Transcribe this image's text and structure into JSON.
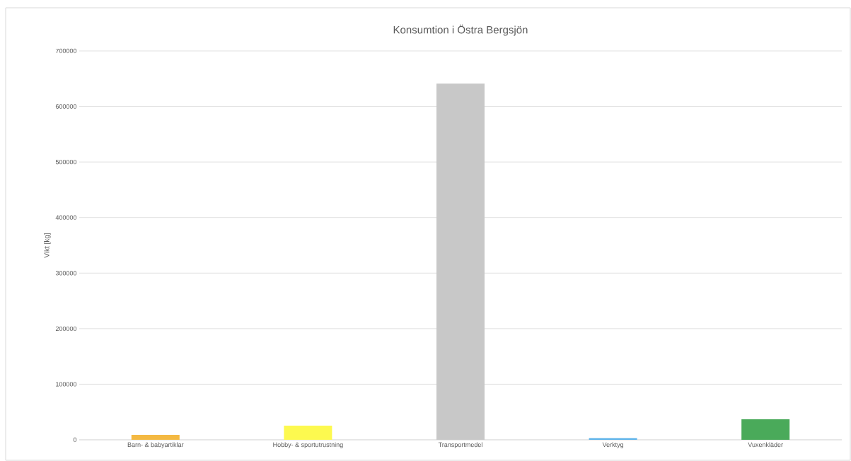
{
  "chart_data": {
    "type": "bar",
    "title": "Konsumtion i Östra Bergsjön",
    "ylabel": "Vikt [kg]",
    "categories": [
      "Barn- & babyartiklar",
      "Hobby- & sportutrustning",
      "Transportmedel",
      "Verktyg",
      "Vuxenkläder"
    ],
    "values": [
      9000,
      25500,
      641000,
      3000,
      37000
    ],
    "colors": [
      "#f4b942",
      "#fdf94f",
      "#c8c8c8",
      "#5cb3ea",
      "#4aaa5a"
    ],
    "ylim": [
      0,
      700000
    ],
    "yticks": [
      0,
      100000,
      200000,
      300000,
      400000,
      500000,
      600000,
      700000
    ],
    "grid": "y"
  }
}
